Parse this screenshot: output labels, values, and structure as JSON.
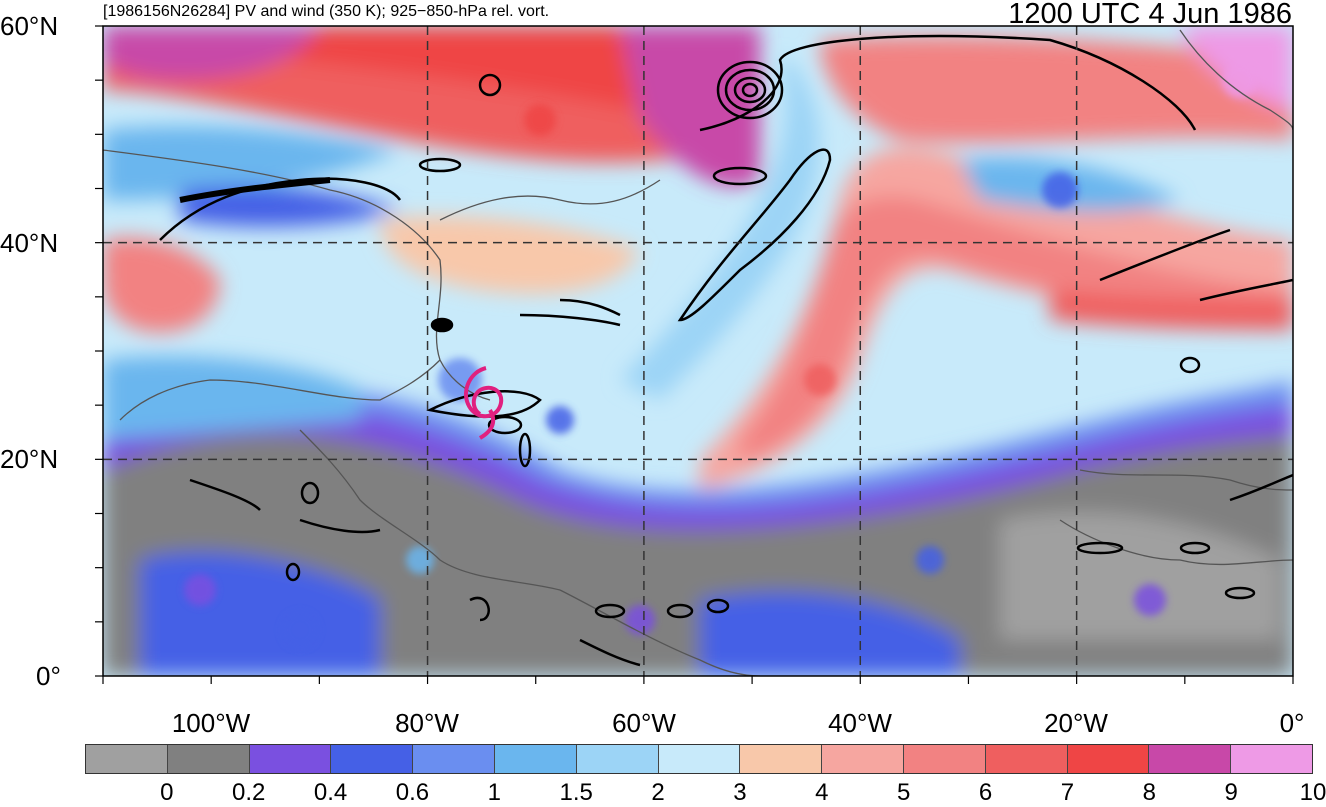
{
  "header": {
    "title": "[1986156N26284] PV and wind (350 K); 925−850-hPa rel. vort.",
    "valid_time": "1200 UTC 4 Jun 1986"
  },
  "map": {
    "lat_labels": [
      "60°N",
      "40°N",
      "20°N",
      "0°"
    ],
    "lon_labels": [
      "100°W",
      "80°W",
      "60°W",
      "40°W",
      "20°W",
      "0°"
    ],
    "lat_range": [
      0,
      60
    ],
    "lon_range": [
      -110,
      0
    ],
    "storm_symbol": "tropical-cyclone-icon",
    "storm_color": "#e0207f",
    "storm_lat": 25.5,
    "storm_lon": -74.5
  },
  "colorbar": {
    "ticks": [
      "0",
      "0.2",
      "0.4",
      "0.6",
      "1",
      "1.5",
      "2",
      "3",
      "4",
      "5",
      "6",
      "7",
      "8",
      "9",
      "10"
    ],
    "colors": [
      "#a0a0a0",
      "#808080",
      "#7a50e0",
      "#4560e6",
      "#6a8ef0",
      "#6ab6ee",
      "#9cd4f6",
      "#c8eafa",
      "#f8c8aa",
      "#f6a6a0",
      "#f28282",
      "#ef5f5f",
      "#ef4545",
      "#c848a8",
      "#ee9ae6"
    ]
  }
}
